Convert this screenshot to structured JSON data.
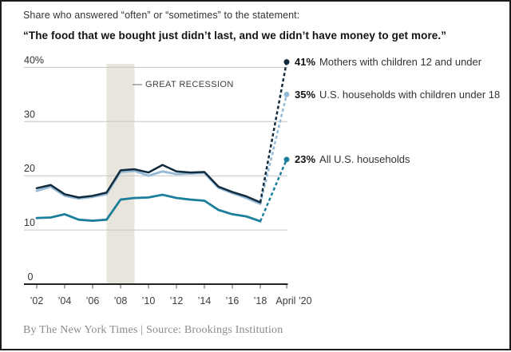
{
  "header": {
    "kicker": "Share who answered “often” or “sometimes” to the statement:",
    "quote": "“The food that we bought just didn’t last, and we didn’t have money to get more.”"
  },
  "chart_data": {
    "type": "line",
    "title": "Share who answered “often” or “sometimes” to: “The food that we bought just didn’t last, and we didn’t have money to get more.”",
    "x": [
      2002,
      2003,
      2004,
      2005,
      2006,
      2007,
      2008,
      2009,
      2010,
      2011,
      2012,
      2013,
      2014,
      2015,
      2016,
      2017,
      2018
    ],
    "x_axis": {
      "tick_years": [
        2002,
        2004,
        2006,
        2008,
        2010,
        2012,
        2014,
        2016,
        2018
      ],
      "tick_labels": [
        "’02",
        "’04",
        "’06",
        "’08",
        "’10",
        "’12",
        "’14",
        "’16",
        "’18"
      ],
      "final_tick_label": "April ’20"
    },
    "y_axis": {
      "ylim": [
        0,
        42
      ],
      "tick_values": [
        40,
        30,
        20,
        10,
        0
      ],
      "tick_labels": [
        "40%",
        "30",
        "20",
        "10",
        "0"
      ],
      "gridlines": [
        40,
        30,
        20,
        10
      ]
    },
    "series": [
      {
        "name": "Mothers with children 12 and under",
        "color": "#112b3c",
        "values": [
          17.7,
          18.3,
          16.6,
          16.0,
          16.3,
          16.9,
          21.0,
          21.2,
          20.6,
          22.0,
          20.8,
          20.6,
          20.7,
          18.0,
          17.0,
          16.2,
          15.1
        ],
        "april_2020": 41,
        "callout": {
          "value": "41%",
          "label": "Mothers with children 12 and under"
        }
      },
      {
        "name": "U.S. households with children under 18",
        "color": "#93b9d6",
        "values": [
          17.2,
          18.0,
          16.3,
          15.8,
          16.1,
          16.6,
          20.7,
          20.9,
          20.0,
          20.8,
          20.3,
          20.4,
          20.5,
          17.8,
          16.8,
          15.9,
          14.8
        ],
        "april_2020": 35,
        "callout": {
          "value": "35%",
          "label": "U.S. households with children under 18"
        }
      },
      {
        "name": "All U.S. households",
        "color": "#1b7f9b",
        "values": [
          12.2,
          12.3,
          12.9,
          11.9,
          11.7,
          11.9,
          15.6,
          15.9,
          16.0,
          16.5,
          15.9,
          15.6,
          15.4,
          13.7,
          12.9,
          12.5,
          11.6
        ],
        "april_2020": 23,
        "callout": {
          "value": "23%",
          "label": "All U.S. households"
        }
      }
    ],
    "annotations": {
      "recession_label": "GREAT RECESSION",
      "recession_span": [
        2007,
        2009
      ]
    },
    "legend_position": "right-of-endpoints",
    "grid": "horizontal",
    "colors": {
      "gridline": "#c6c6c6",
      "axis": "#222222",
      "recession_band": "#e7e5dc",
      "tick_text": "#3d3d3d"
    }
  },
  "footer": {
    "credit": "By The New York Times | Source: Brookings Institution"
  }
}
